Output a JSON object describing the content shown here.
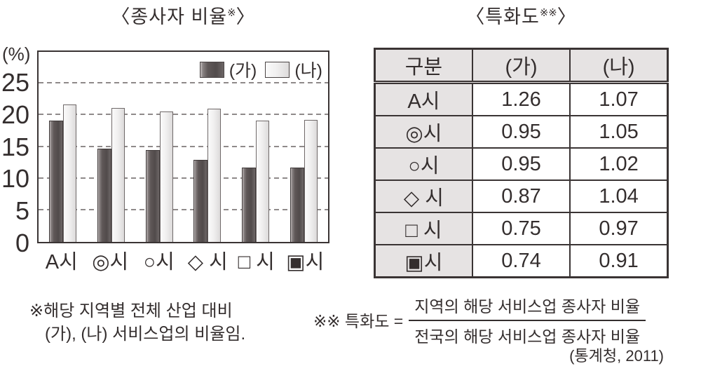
{
  "figure": {
    "chart_title": {
      "text": "〈종사자 비율",
      "sup": "※",
      "close": "〉"
    },
    "table_title": {
      "text": "〈특화도",
      "sup": "※※",
      "close": "〉"
    },
    "y_axis_unit": "(%)",
    "footnote1_line1": "※해당 지역별 전체 산업 대비",
    "footnote1_line2": "(가), (나) 서비스업의 비율임.",
    "footnote2_label": "※※ 특화도 =",
    "footnote2_numerator": "지역의 해당 서비스업 종사자 비율",
    "footnote2_denominator": "전국의 해당 서비스업 종사자 비율",
    "source": "(통계청, 2011)"
  },
  "colors": {
    "ink": "#342e2e",
    "gridline": "#8f8a8a",
    "table_header_bg": "#e6e3e3",
    "bar_dark": "#564f4f",
    "bar_light": "#ebe9e9"
  },
  "chart_data": [
    {
      "type": "bar",
      "title": "〈종사자 비율※〉",
      "ylabel": "(%)",
      "categories": [
        "A시",
        "◎시",
        "○시",
        "◇ 시",
        "□ 시",
        "▣시"
      ],
      "series": [
        {
          "name": "(가)",
          "values": [
            19.2,
            14.7,
            14.5,
            13.0,
            11.7,
            11.7
          ]
        },
        {
          "name": "(나)",
          "values": [
            21.7,
            21.1,
            20.6,
            21.0,
            19.2,
            19.3
          ]
        }
      ],
      "ylim": [
        0,
        30
      ],
      "yticks": [
        0,
        5,
        10,
        15,
        20,
        25
      ],
      "grid": "horizontal-dashed",
      "legend_position": "top-right-inside"
    },
    {
      "type": "table",
      "title": "〈특화도※※〉",
      "columns": [
        "구분",
        "(가)",
        "(나)"
      ],
      "rows": [
        [
          "A시",
          "1.26",
          "1.07"
        ],
        [
          "◎시",
          "0.95",
          "1.05"
        ],
        [
          "○시",
          "0.95",
          "1.02"
        ],
        [
          "◇ 시",
          "0.87",
          "1.04"
        ],
        [
          "□ 시",
          "0.75",
          "0.97"
        ],
        [
          "▣시",
          "0.74",
          "0.91"
        ]
      ]
    }
  ]
}
